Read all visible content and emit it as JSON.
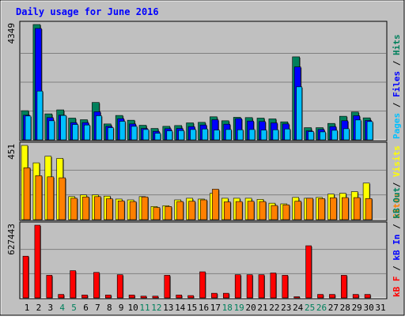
{
  "title": "Daily usage for June 2016",
  "colors": {
    "background": "#C0C0C0",
    "title": "#0000FF",
    "hits": "#00805C",
    "files": "#0000FF",
    "pages": "#00C0FF",
    "visits": "#FFFF00",
    "sites": "#FF8000",
    "kb_in": "#0000FF",
    "kb_out": "#00805C",
    "kb_f": "#FF0000",
    "weekend_label": "#00805C",
    "weekday_label": "#000000"
  },
  "chart_data": [
    {
      "type": "bar",
      "name": "hits-files-pages",
      "ymax_label": "4349",
      "ylim": [
        0,
        4349
      ],
      "right_label": [
        {
          "text": "Pages",
          "color": "#00C0FF"
        },
        {
          "text": " / ",
          "color": "#000000"
        },
        {
          "text": "Files",
          "color": "#0000FF"
        },
        {
          "text": " / ",
          "color": "#000000"
        },
        {
          "text": "Hits",
          "color": "#00805C"
        }
      ],
      "categories": [
        "1",
        "2",
        "3",
        "4",
        "5",
        "6",
        "7",
        "8",
        "9",
        "10",
        "11",
        "12",
        "13",
        "14",
        "15",
        "16",
        "17",
        "18",
        "19",
        "20",
        "21",
        "22",
        "23",
        "24",
        "25",
        "26",
        "27",
        "28",
        "29",
        "30",
        "31"
      ],
      "series": [
        {
          "name": "Hits",
          "values": [
            1100,
            4349,
            980,
            1130,
            820,
            760,
            1410,
            600,
            920,
            740,
            550,
            430,
            510,
            540,
            640,
            660,
            870,
            720,
            850,
            840,
            820,
            790,
            680,
            3130,
            460,
            460,
            620,
            890,
            1050,
            830,
            0
          ]
        },
        {
          "name": "Files",
          "values": [
            930,
            4200,
            840,
            930,
            650,
            650,
            1060,
            510,
            800,
            600,
            430,
            320,
            420,
            430,
            500,
            560,
            760,
            590,
            800,
            710,
            690,
            640,
            600,
            2750,
            340,
            390,
            500,
            720,
            910,
            730,
            0
          ]
        },
        {
          "name": "Pages",
          "values": [
            900,
            1840,
            720,
            920,
            580,
            560,
            910,
            460,
            700,
            510,
            390,
            250,
            340,
            350,
            390,
            410,
            370,
            390,
            380,
            390,
            370,
            380,
            410,
            2000,
            310,
            300,
            360,
            420,
            750,
            690,
            0
          ]
        }
      ]
    },
    {
      "type": "bar",
      "name": "visits-sites",
      "ymax_label": "451",
      "ylim": [
        0,
        451
      ],
      "right_label": [
        {
          "text": "Sites",
          "color": "#FF8000"
        },
        {
          "text": " / ",
          "color": "#000000"
        },
        {
          "text": "Visits",
          "color": "#FFFF00"
        }
      ],
      "categories": [
        "1",
        "2",
        "3",
        "4",
        "5",
        "6",
        "7",
        "8",
        "9",
        "10",
        "11",
        "12",
        "13",
        "14",
        "15",
        "16",
        "17",
        "18",
        "19",
        "20",
        "21",
        "22",
        "23",
        "24",
        "25",
        "26",
        "27",
        "28",
        "29",
        "30",
        "31"
      ],
      "series": [
        {
          "name": "Visits",
          "values": [
            451,
            345,
            385,
            372,
            140,
            150,
            150,
            143,
            125,
            120,
            140,
            80,
            85,
            120,
            130,
            125,
            160,
            130,
            130,
            130,
            123,
            100,
            96,
            135,
            130,
            135,
            155,
            160,
            170,
            222,
            0
          ]
        },
        {
          "name": "Sites",
          "values": [
            315,
            267,
            260,
            254,
            130,
            138,
            140,
            127,
            114,
            110,
            138,
            74,
            80,
            110,
            112,
            120,
            185,
            108,
            110,
            112,
            110,
            86,
            90,
            112,
            130,
            128,
            133,
            134,
            134,
            128,
            0
          ]
        }
      ]
    },
    {
      "type": "bar",
      "name": "kbytes",
      "ymax_label": "627443",
      "ylim": [
        0,
        627443
      ],
      "right_label": [
        {
          "text": "kB F",
          "color": "#FF0000"
        },
        {
          "text": " / ",
          "color": "#000000"
        },
        {
          "text": "kB In",
          "color": "#0000FF"
        },
        {
          "text": " / ",
          "color": "#000000"
        },
        {
          "text": "kB Out",
          "color": "#00805C"
        }
      ],
      "categories": [
        "1",
        "2",
        "3",
        "4",
        "5",
        "6",
        "7",
        "8",
        "9",
        "10",
        "11",
        "12",
        "13",
        "14",
        "15",
        "16",
        "17",
        "18",
        "19",
        "20",
        "21",
        "22",
        "23",
        "24",
        "25",
        "26",
        "27",
        "28",
        "29",
        "30",
        "31"
      ],
      "series": [
        {
          "name": "kB F",
          "values": [
            360000,
            627443,
            195000,
            30000,
            235000,
            25000,
            220000,
            25000,
            200000,
            25000,
            15000,
            15000,
            195000,
            25000,
            20000,
            225000,
            40000,
            40000,
            200000,
            200000,
            200000,
            215000,
            195000,
            10000,
            450000,
            30000,
            30000,
            195000,
            30000,
            30000,
            0
          ]
        }
      ]
    }
  ],
  "x_axis": {
    "labels": [
      "1",
      "2",
      "3",
      "4",
      "5",
      "6",
      "7",
      "8",
      "9",
      "10",
      "11",
      "12",
      "13",
      "14",
      "15",
      "16",
      "17",
      "18",
      "19",
      "20",
      "21",
      "22",
      "23",
      "24",
      "25",
      "26",
      "27",
      "28",
      "29",
      "30",
      "31"
    ],
    "weekend_days": [
      "4",
      "5",
      "11",
      "12",
      "18",
      "19",
      "25",
      "26"
    ]
  }
}
